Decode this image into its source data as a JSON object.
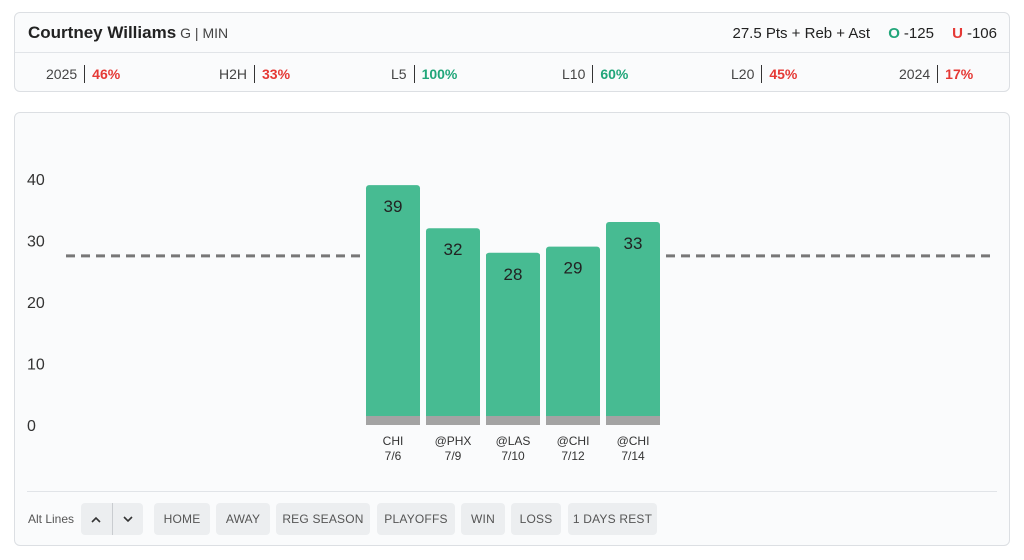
{
  "header": {
    "player_name": "Courtney Williams",
    "player_meta": "G | MIN",
    "prop_label": "27.5 Pts + Reb + Ast",
    "over_letter": "O",
    "over_odds": "-125",
    "under_letter": "U",
    "under_odds": "-106",
    "over_color": "#21a67a",
    "under_color": "#e53935"
  },
  "stats": [
    {
      "label": "2025",
      "value": "46%",
      "tone": "red"
    },
    {
      "label": "H2H",
      "value": "33%",
      "tone": "red"
    },
    {
      "label": "L5",
      "value": "100%",
      "tone": "green"
    },
    {
      "label": "L10",
      "value": "60%",
      "tone": "green"
    },
    {
      "label": "L20",
      "value": "45%",
      "tone": "red"
    },
    {
      "label": "2024",
      "value": "17%",
      "tone": "red"
    }
  ],
  "chart_data": {
    "type": "bar",
    "categories": [
      "CHI 7/6",
      "@PHX 7/9",
      "@LAS 7/10",
      "@CHI 7/12",
      "@CHI 7/14"
    ],
    "opponents": [
      "CHI",
      "@PHX",
      "@LAS",
      "@CHI",
      "@CHI"
    ],
    "dates": [
      "7/6",
      "7/9",
      "7/10",
      "7/12",
      "7/14"
    ],
    "values": [
      39,
      32,
      28,
      29,
      33
    ],
    "line": 27.5,
    "ylim": [
      0,
      40
    ],
    "yticks": [
      "0",
      "10",
      "20",
      "30",
      "40"
    ],
    "bar_color": "#47bb92",
    "base_color": "#a3a3a3",
    "line_color": "#777777",
    "grid": false
  },
  "controls": {
    "alt_lines_label": "Alt Lines",
    "up_icon": "chevron-up-icon",
    "down_icon": "chevron-down-icon",
    "filters": [
      "HOME",
      "AWAY",
      "REG SEASON",
      "PLAYOFFS",
      "WIN",
      "LOSS",
      "1 DAYS REST"
    ]
  }
}
